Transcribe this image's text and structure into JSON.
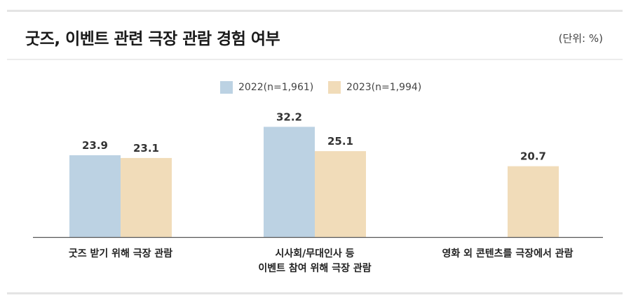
{
  "header": {
    "title": "굿즈, 이벤트 관련 극장 관람 경험 여부",
    "unit": "(단위: %)"
  },
  "chart_data": {
    "type": "bar",
    "title": "굿즈, 이벤트 관련 극장 관람 경험 여부",
    "unit": "(단위: %)",
    "categories": [
      [
        "굿즈 받기 위해 극장 관람"
      ],
      [
        "시사회/무대인사 등",
        "이벤트 참여 위해 극장 관람"
      ],
      [
        "영화 외 콘텐츠를 극장에서 관람"
      ]
    ],
    "series": [
      {
        "name": "2022(n=1,961)",
        "color": "#bcd2e3",
        "values": [
          23.9,
          32.2,
          null
        ]
      },
      {
        "name": "2023(n=1,994)",
        "color": "#f1dcb9",
        "values": [
          23.1,
          25.1,
          20.7
        ]
      }
    ],
    "ylim": [
      0,
      40
    ],
    "legend_position": "top-center",
    "grid": false
  }
}
